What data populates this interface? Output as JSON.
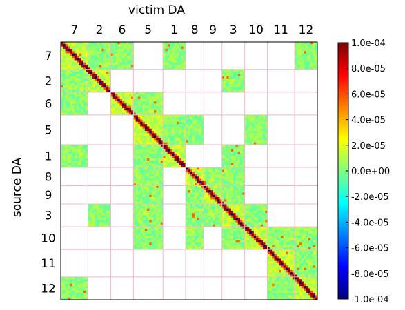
{
  "chart_data": {
    "type": "heatmap",
    "title": "",
    "xlabel": "victim DA",
    "ylabel": "source DA",
    "categories": [
      "7",
      "2",
      "6",
      "5",
      "1",
      "8",
      "9",
      "3",
      "10",
      "11",
      "12"
    ],
    "block_sizes": [
      12,
      10,
      10,
      13,
      10,
      8,
      8,
      10,
      10,
      12,
      10
    ],
    "grid": true,
    "legend": "colorbar-right",
    "colorbar": {
      "min": -0.0001,
      "max": 0.0001,
      "tick_labels": [
        "1.0e-04",
        "8.0e-05",
        "6.0e-05",
        "4.0e-05",
        "2.0e-05",
        "0.0e+00",
        "-2.0e-05",
        "-4.0e-05",
        "-6.0e-05",
        "-8.0e-05",
        "-1.0e-04"
      ],
      "tick_values": [
        0.0001,
        8e-05,
        6e-05,
        4e-05,
        2e-05,
        0.0,
        -2e-05,
        -4e-05,
        -6e-05,
        -8e-05,
        -0.0001
      ]
    },
    "filled_blocks": [
      [
        "7",
        "7"
      ],
      [
        "7",
        "2"
      ],
      [
        "7",
        "6"
      ],
      [
        "7",
        "1"
      ],
      [
        "7",
        "12"
      ],
      [
        "2",
        "7"
      ],
      [
        "2",
        "2"
      ],
      [
        "2",
        "3"
      ],
      [
        "6",
        "7"
      ],
      [
        "6",
        "6"
      ],
      [
        "6",
        "5"
      ],
      [
        "5",
        "5"
      ],
      [
        "5",
        "1"
      ],
      [
        "5",
        "8"
      ],
      [
        "5",
        "10"
      ],
      [
        "1",
        "7"
      ],
      [
        "1",
        "5"
      ],
      [
        "1",
        "1"
      ],
      [
        "1",
        "3"
      ],
      [
        "8",
        "5"
      ],
      [
        "8",
        "8"
      ],
      [
        "8",
        "9"
      ],
      [
        "8",
        "3"
      ],
      [
        "9",
        "5"
      ],
      [
        "9",
        "8"
      ],
      [
        "9",
        "9"
      ],
      [
        "9",
        "3"
      ],
      [
        "3",
        "2"
      ],
      [
        "3",
        "5"
      ],
      [
        "3",
        "8"
      ],
      [
        "3",
        "9"
      ],
      [
        "3",
        "3"
      ],
      [
        "3",
        "10"
      ],
      [
        "10",
        "5"
      ],
      [
        "10",
        "8"
      ],
      [
        "10",
        "3"
      ],
      [
        "10",
        "10"
      ],
      [
        "10",
        "11"
      ],
      [
        "10",
        "12"
      ],
      [
        "11",
        "11"
      ],
      [
        "11",
        "12"
      ],
      [
        "12",
        "7"
      ],
      [
        "12",
        "11"
      ],
      [
        "12",
        "12"
      ]
    ],
    "diagonal_block_mean": 1.2e-05,
    "offdiagonal_block_mean": 3e-06,
    "diagonal_pattern": "alternating maximum (+1.0e-04) and minimum (-1.0e-04) values along the main diagonal"
  }
}
